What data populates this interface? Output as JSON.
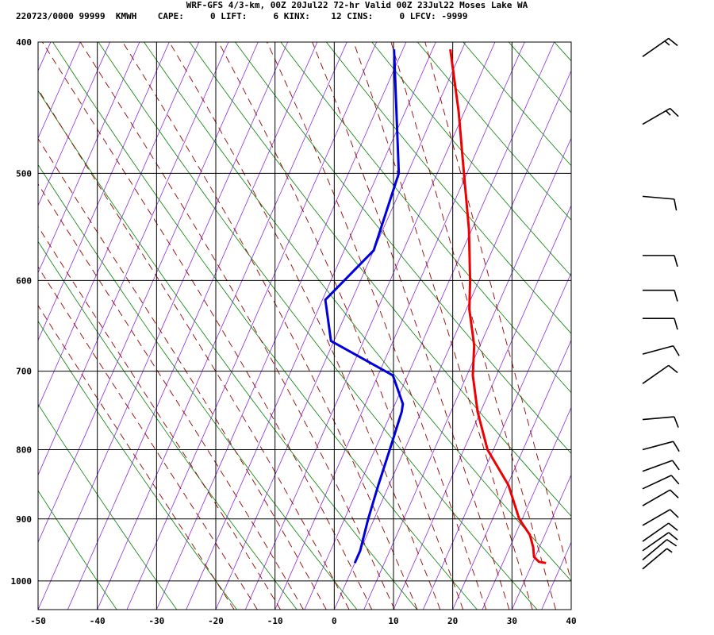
{
  "header": {
    "title": "WRF-GFS 4/3-km, 00Z 20Jul22 72-hr Valid 00Z 23Jul22 Moses Lake WA",
    "info": "220723/0000 99999  KMWH    CAPE:     0 LIFT:     6 KINX:    12 CINS:     0 LFCV: -9999"
  },
  "chart_data": {
    "type": "line",
    "title": "WRF-GFS 4/3-km, 00Z 20Jul22 72-hr Valid 00Z 23Jul22 Moses Lake WA",
    "xlabel": "",
    "ylabel": "",
    "xlim": [
      -50,
      40
    ],
    "ylim": [
      1050,
      400
    ],
    "y_scale": "log-pressure",
    "x_ticks": [
      -50,
      -40,
      -30,
      -20,
      -10,
      0,
      10,
      20,
      30,
      40
    ],
    "y_ticks": [
      400,
      500,
      600,
      700,
      800,
      900,
      1000
    ],
    "grid": true,
    "colors": {
      "temperature": "#ee0000",
      "dewpoint": "#0000dd",
      "dry_adiabats": "#008000",
      "moist_adiabats": "#990000",
      "isotherms_skewed": "#8a2be2",
      "grid": "#000000"
    },
    "series": [
      {
        "key": "temperature",
        "points": [
          {
            "p": 970,
            "t": 32.3
          },
          {
            "p": 968,
            "t": 31.0
          },
          {
            "p": 960,
            "t": 29.8
          },
          {
            "p": 945,
            "t": 29.0
          },
          {
            "p": 925,
            "t": 27.5
          },
          {
            "p": 900,
            "t": 24.5
          },
          {
            "p": 850,
            "t": 20.2
          },
          {
            "p": 800,
            "t": 14.0
          },
          {
            "p": 750,
            "t": 9.5
          },
          {
            "p": 705,
            "t": 6.0
          },
          {
            "p": 670,
            "t": 4.0
          },
          {
            "p": 630,
            "t": 0.5
          },
          {
            "p": 600,
            "t": -1.5
          },
          {
            "p": 550,
            "t": -5.5
          },
          {
            "p": 500,
            "t": -10.5
          },
          {
            "p": 450,
            "t": -16.0
          },
          {
            "p": 405,
            "t": -22.0
          }
        ]
      },
      {
        "key": "dewpoint",
        "points": [
          {
            "p": 970,
            "t": 0.0
          },
          {
            "p": 950,
            "t": 0.0
          },
          {
            "p": 900,
            "t": -1.0
          },
          {
            "p": 850,
            "t": -1.8
          },
          {
            "p": 800,
            "t": -2.5
          },
          {
            "p": 750,
            "t": -3.3
          },
          {
            "p": 740,
            "t": -3.7
          },
          {
            "p": 705,
            "t": -7.5
          },
          {
            "p": 665,
            "t": -20.5
          },
          {
            "p": 620,
            "t": -24.5
          },
          {
            "p": 570,
            "t": -20.0
          },
          {
            "p": 500,
            "t": -21.5
          },
          {
            "p": 450,
            "t": -26.5
          },
          {
            "p": 405,
            "t": -31.5
          }
        ]
      }
    ],
    "wind_barbs": [
      {
        "p": 980,
        "dir": 230,
        "spd": 5
      },
      {
        "p": 965,
        "dir": 230,
        "spd": 10
      },
      {
        "p": 950,
        "dir": 235,
        "spd": 10
      },
      {
        "p": 935,
        "dir": 235,
        "spd": 10
      },
      {
        "p": 910,
        "dir": 240,
        "spd": 10
      },
      {
        "p": 880,
        "dir": 240,
        "spd": 10
      },
      {
        "p": 855,
        "dir": 245,
        "spd": 10
      },
      {
        "p": 830,
        "dir": 250,
        "spd": 10
      },
      {
        "p": 800,
        "dir": 255,
        "spd": 10
      },
      {
        "p": 760,
        "dir": 265,
        "spd": 10
      },
      {
        "p": 715,
        "dir": 235,
        "spd": 10
      },
      {
        "p": 680,
        "dir": 255,
        "spd": 10
      },
      {
        "p": 640,
        "dir": 270,
        "spd": 10
      },
      {
        "p": 610,
        "dir": 270,
        "spd": 10
      },
      {
        "p": 575,
        "dir": 270,
        "spd": 10
      },
      {
        "p": 520,
        "dir": 275,
        "spd": 10
      },
      {
        "p": 460,
        "dir": 240,
        "spd": 15
      },
      {
        "p": 410,
        "dir": 235,
        "spd": 15
      }
    ]
  }
}
